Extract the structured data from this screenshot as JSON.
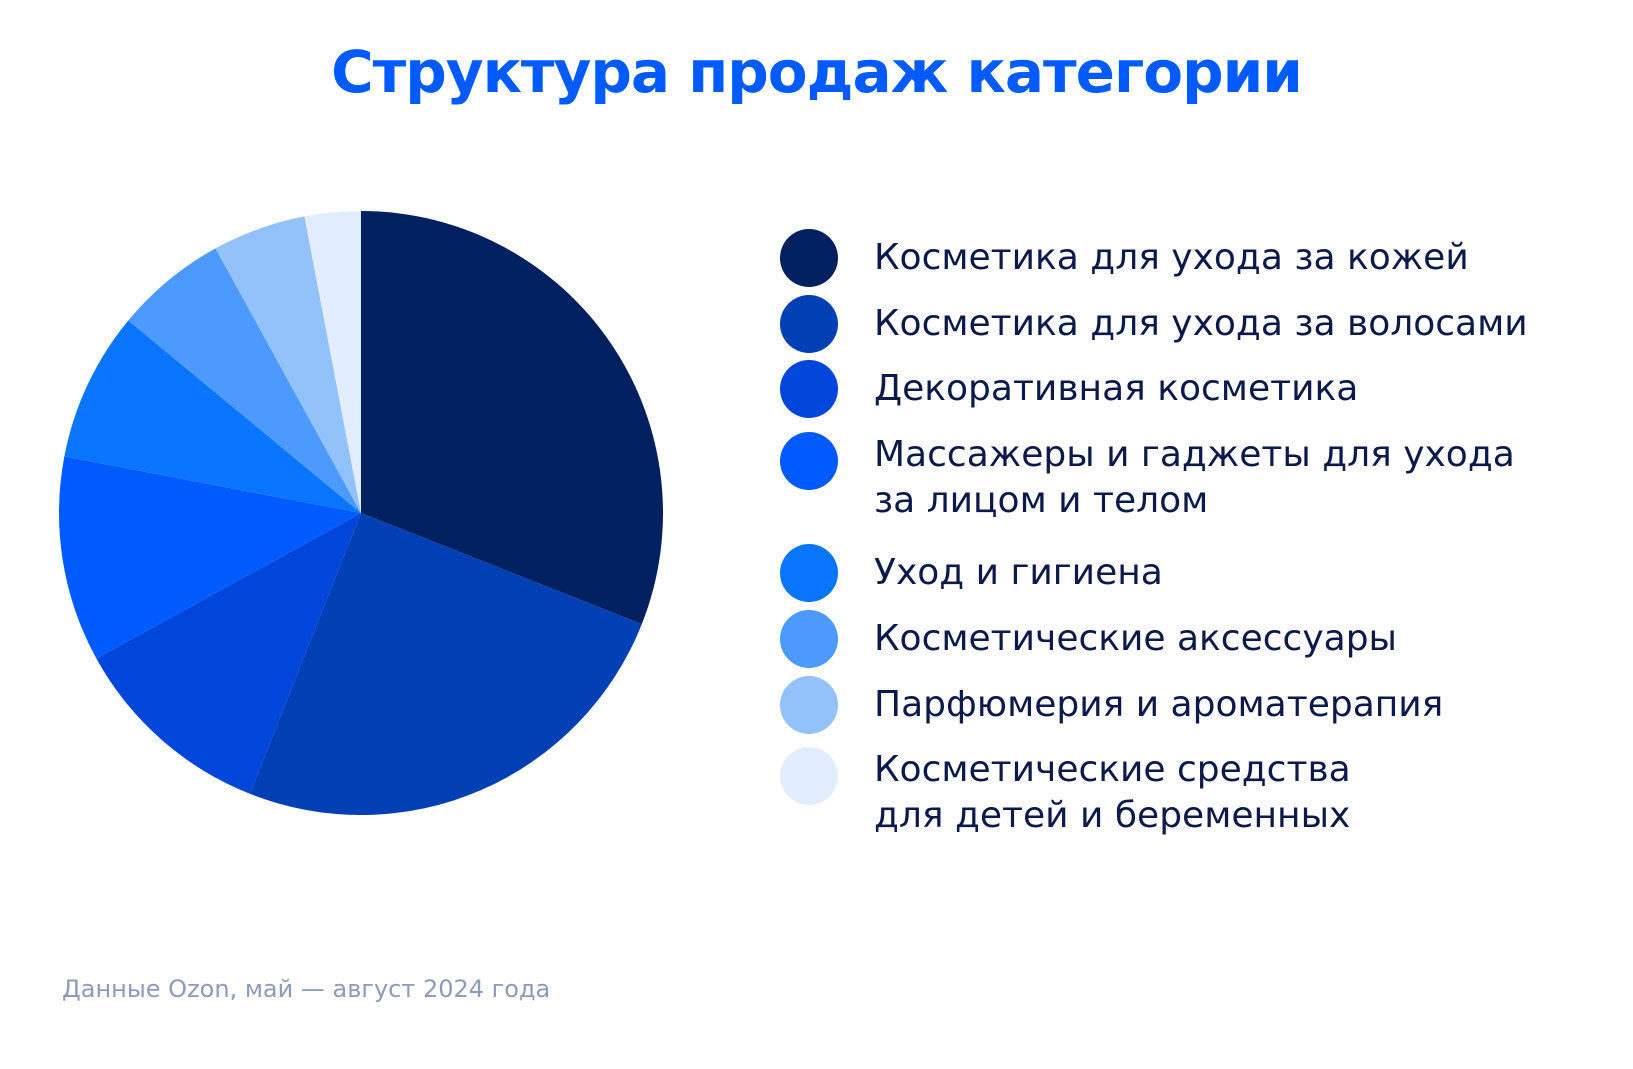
{
  "chart_data": {
    "type": "pie",
    "title": "Структура продаж категории",
    "source": "Данные Ozon, май — август 2024 года",
    "legend_placement": "right",
    "slices": [
      {
        "label": "Косметика для ухода за кожей",
        "value": 31,
        "color": "#002060"
      },
      {
        "label": "Косметика для ухода за волосами",
        "value": 25,
        "color": "#003fb4"
      },
      {
        "label": "Декоративная косметика",
        "value": 11,
        "color": "#0046da"
      },
      {
        "label": "Массажеры и гаджеты для ухода\nза лицом и телом",
        "value": 11,
        "color": "#005bff"
      },
      {
        "label": "Уход и гигиена",
        "value": 8,
        "color": "#0a75ff"
      },
      {
        "label": "Косметические аксессуары",
        "value": 6,
        "color": "#4d9aff"
      },
      {
        "label": "Парфюмерия и ароматерапия",
        "value": 5,
        "color": "#93c2fb"
      },
      {
        "label": "Косметические средства\nдля детей и беременных",
        "value": 3,
        "color": "#e2eeff"
      }
    ]
  }
}
